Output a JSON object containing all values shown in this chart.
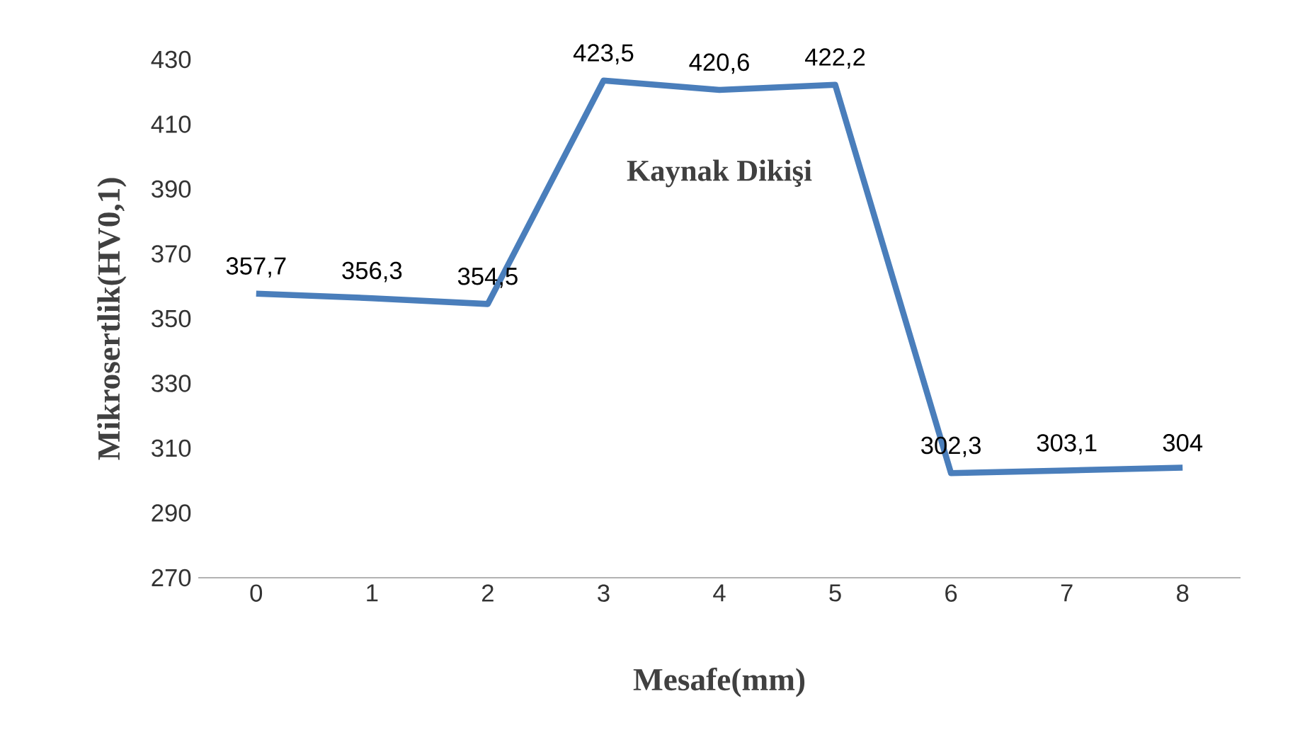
{
  "chart_data": {
    "type": "line",
    "xlabel": "Mesafe(mm)",
    "ylabel": "Mikrosertlik(HV0,1)",
    "categories": [
      "0",
      "1",
      "2",
      "3",
      "4",
      "5",
      "6",
      "7",
      "8"
    ],
    "series": [
      {
        "color": "#4a7ebb",
        "values": [
          357.7,
          356.3,
          354.5,
          423.5,
          420.6,
          422.2,
          302.3,
          303.1,
          304
        ],
        "value_labels": [
          "357,7",
          "356,3",
          "354,5",
          "423,5",
          "420,6",
          "422,2",
          "302,3",
          "303,1",
          "304"
        ]
      }
    ],
    "ylim": [
      270,
      430
    ],
    "yticks": [
      270,
      290,
      310,
      330,
      350,
      370,
      390,
      410,
      430
    ],
    "annotations": [
      "Kaynak Dikişi"
    ],
    "marker": "none",
    "line_style": "solid"
  }
}
